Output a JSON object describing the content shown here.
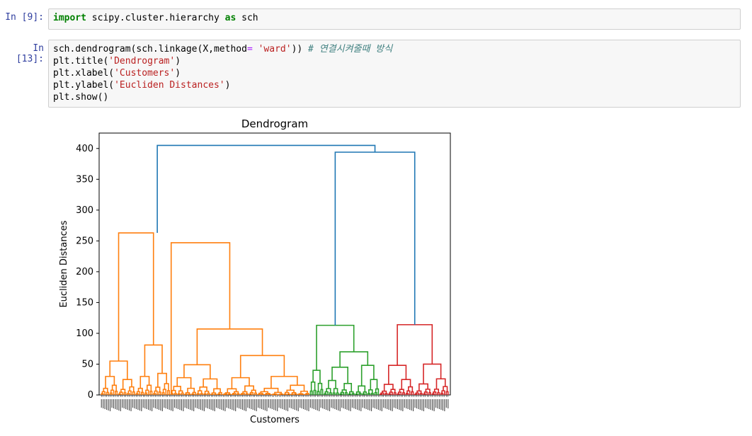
{
  "cells": [
    {
      "prompt": "In [9]:",
      "lines": [
        [
          {
            "t": "import",
            "c": "kw"
          },
          {
            "t": " scipy.cluster.hierarchy ",
            "c": ""
          },
          {
            "t": "as",
            "c": "kw"
          },
          {
            "t": " sch",
            "c": ""
          }
        ]
      ]
    },
    {
      "prompt": "In [13]:",
      "lines": [
        [
          {
            "t": "sch.dendrogram(sch.linkage(X,method",
            "c": ""
          },
          {
            "t": "=",
            "c": "op"
          },
          {
            "t": " ",
            "c": ""
          },
          {
            "t": "'ward'",
            "c": "str"
          },
          {
            "t": ")) ",
            "c": ""
          },
          {
            "t": "# 연결시켜줄때 방식",
            "c": "cm"
          }
        ],
        [
          {
            "t": "plt.title(",
            "c": ""
          },
          {
            "t": "'Dendrogram'",
            "c": "str"
          },
          {
            "t": ")",
            "c": ""
          }
        ],
        [
          {
            "t": "plt.xlabel(",
            "c": ""
          },
          {
            "t": "'Customers'",
            "c": "str"
          },
          {
            "t": ")",
            "c": ""
          }
        ],
        [
          {
            "t": "plt.ylabel(",
            "c": ""
          },
          {
            "t": "'Eucliden Distances'",
            "c": "str"
          },
          {
            "t": ")",
            "c": ""
          }
        ],
        [
          {
            "t": "plt.show()",
            "c": ""
          }
        ]
      ]
    }
  ],
  "chart_data": {
    "type": "dendrogram",
    "title": "Dendrogram",
    "xlabel": "Customers",
    "ylabel": "Eucliden Distances",
    "ylim": [
      0,
      425
    ],
    "yticks": [
      0,
      50,
      100,
      150,
      200,
      250,
      300,
      350,
      400
    ],
    "colors": {
      "cluster1": "#ff7f0e",
      "cluster2": "#2ca02c",
      "cluster3": "#d62728",
      "above": "#1f77b4"
    },
    "leaf_count": 200,
    "merges": [
      {
        "name": "root",
        "height": 405,
        "color": "#1f77b4"
      },
      {
        "name": "green-red",
        "height": 394,
        "color": "#1f77b4"
      },
      {
        "name": "orange-top",
        "height": 263,
        "color": "#ff7f0e"
      },
      {
        "name": "orange-mid",
        "height": 247,
        "color": "#ff7f0e"
      },
      {
        "name": "green-top",
        "height": 113,
        "color": "#2ca02c"
      },
      {
        "name": "red-top",
        "height": 114,
        "color": "#d62728"
      },
      {
        "name": "orange-sub-a",
        "height": 107,
        "color": "#ff7f0e"
      },
      {
        "name": "orange-sub-b",
        "height": 81,
        "color": "#ff7f0e"
      },
      {
        "name": "green-sub",
        "height": 70,
        "color": "#2ca02c"
      },
      {
        "name": "orange-sub-c",
        "height": 64,
        "color": "#ff7f0e"
      },
      {
        "name": "orange-sub-d",
        "height": 55,
        "color": "#ff7f0e"
      },
      {
        "name": "red-sub",
        "height": 54,
        "color": "#d62728"
      }
    ]
  }
}
